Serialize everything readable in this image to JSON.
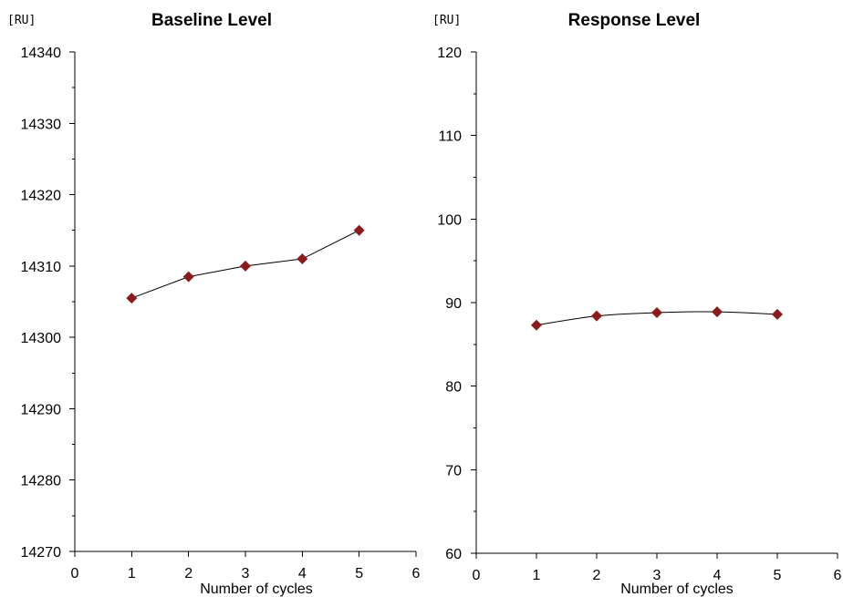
{
  "chart_data": [
    {
      "type": "line",
      "title": "Baseline Level",
      "ylabel": "[RU]",
      "xlabel": "Number of cycles",
      "xlim": [
        0,
        6
      ],
      "ylim": [
        14270,
        14340
      ],
      "x_ticks": [
        "0",
        "1",
        "2",
        "3",
        "4",
        "5",
        "6"
      ],
      "y_ticks": [
        "14270",
        "14280",
        "14290",
        "14300",
        "14310",
        "14320",
        "14330",
        "14340"
      ],
      "grid": false,
      "series": [
        {
          "x": [
            1,
            2,
            3,
            4,
            5
          ],
          "values": [
            14305.5,
            14308.5,
            14310,
            14311,
            14315
          ],
          "color": "#8b1a1a",
          "marker": "diamond"
        }
      ]
    },
    {
      "type": "line",
      "title": "Response Level",
      "ylabel": "[RU]",
      "xlabel": "Number of cycles",
      "xlim": [
        0,
        6
      ],
      "ylim": [
        60,
        120
      ],
      "x_ticks": [
        "0",
        "1",
        "2",
        "3",
        "4",
        "5",
        "6"
      ],
      "y_ticks": [
        "60",
        "70",
        "80",
        "90",
        "100",
        "110",
        "120"
      ],
      "grid": false,
      "smooth": true,
      "series": [
        {
          "x": [
            1,
            2,
            3,
            4,
            5
          ],
          "values": [
            87.3,
            88.4,
            88.8,
            88.9,
            88.6
          ],
          "color": "#8b1a1a",
          "marker": "diamond"
        }
      ]
    }
  ],
  "colors": {
    "marker": "#8b1a1a",
    "line": "#000000"
  }
}
